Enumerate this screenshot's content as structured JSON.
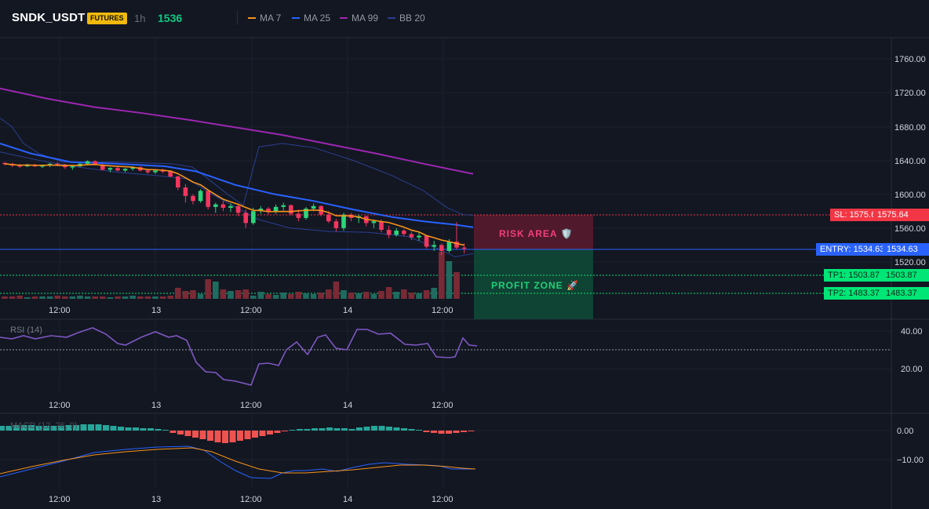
{
  "header": {
    "symbol": "SNDK_USDT",
    "market_badge": "FUTURES",
    "timeframe": "1h",
    "last_price": "1536",
    "indicators": [
      {
        "label": "MA 7",
        "color": "#f7931a"
      },
      {
        "label": "MA 25",
        "color": "#2962ff"
      },
      {
        "label": "MA 99",
        "color": "#9c27b0"
      },
      {
        "label": "BB 20",
        "color": "#2a3f8f"
      }
    ]
  },
  "price_axis": {
    "ticks": [
      "1760.00",
      "1720.00",
      "1680.00",
      "1640.00",
      "1600.00",
      "1560.00",
      "1520.00"
    ]
  },
  "rsi_axis": {
    "ticks": [
      "40.00",
      "20.00"
    ]
  },
  "macd_axis": {
    "ticks": [
      "0.00",
      "−10.00"
    ]
  },
  "time_axis": {
    "labels": [
      "12:00",
      "13",
      "12:00",
      "14",
      "12:00"
    ]
  },
  "trade": {
    "risk_label": "RISK AREA 🛡️",
    "profit_label": "PROFIT ZONE 🚀",
    "sl_label": "SL: 1575.64",
    "sl_value": "1575.64",
    "entry_label": "ENTRY: 1534.63",
    "entry_value": "1534.63",
    "tp1_label": "TP1: 1503.87",
    "tp1_value": "1503.87",
    "tp2_label": "TP2: 1483.37",
    "tp2_value": "1483.37"
  },
  "rsi": {
    "title": "RSI (14)"
  },
  "macd": {
    "title": "MACD (12, 26, 9)"
  },
  "colors": {
    "up": "#26a69a",
    "down": "#f23645",
    "sl": "#f23645",
    "entry": "#2962ff",
    "tp": "#00e676",
    "rsi": "#7e57c2"
  }
}
